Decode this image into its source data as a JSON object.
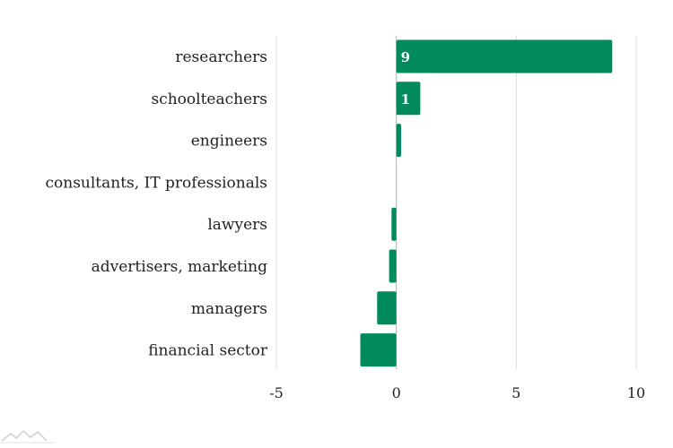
{
  "chart_data": {
    "type": "bar",
    "orientation": "horizontal",
    "categories": [
      "researchers",
      "schoolteachers",
      "engineers",
      "consultants, IT professionals",
      "lawyers",
      "advertisers, marketing",
      "managers",
      "financial sector"
    ],
    "values": [
      9,
      1,
      0.2,
      0,
      -0.2,
      -0.3,
      -0.8,
      -1.5
    ],
    "data_labels": [
      "9",
      "1",
      "",
      "",
      "",
      "",
      "",
      ""
    ],
    "xlim": [
      -5,
      10
    ],
    "x_ticks": [
      -5,
      0,
      5,
      10
    ],
    "x_tick_labels": [
      "-5",
      "0",
      "5",
      "10"
    ],
    "grid": "vertical",
    "legend": "none",
    "title": "",
    "xlabel": "",
    "ylabel": "",
    "bar_color": "#008a5e"
  },
  "footer": {
    "logo_icon": "mountain-logo-icon"
  }
}
